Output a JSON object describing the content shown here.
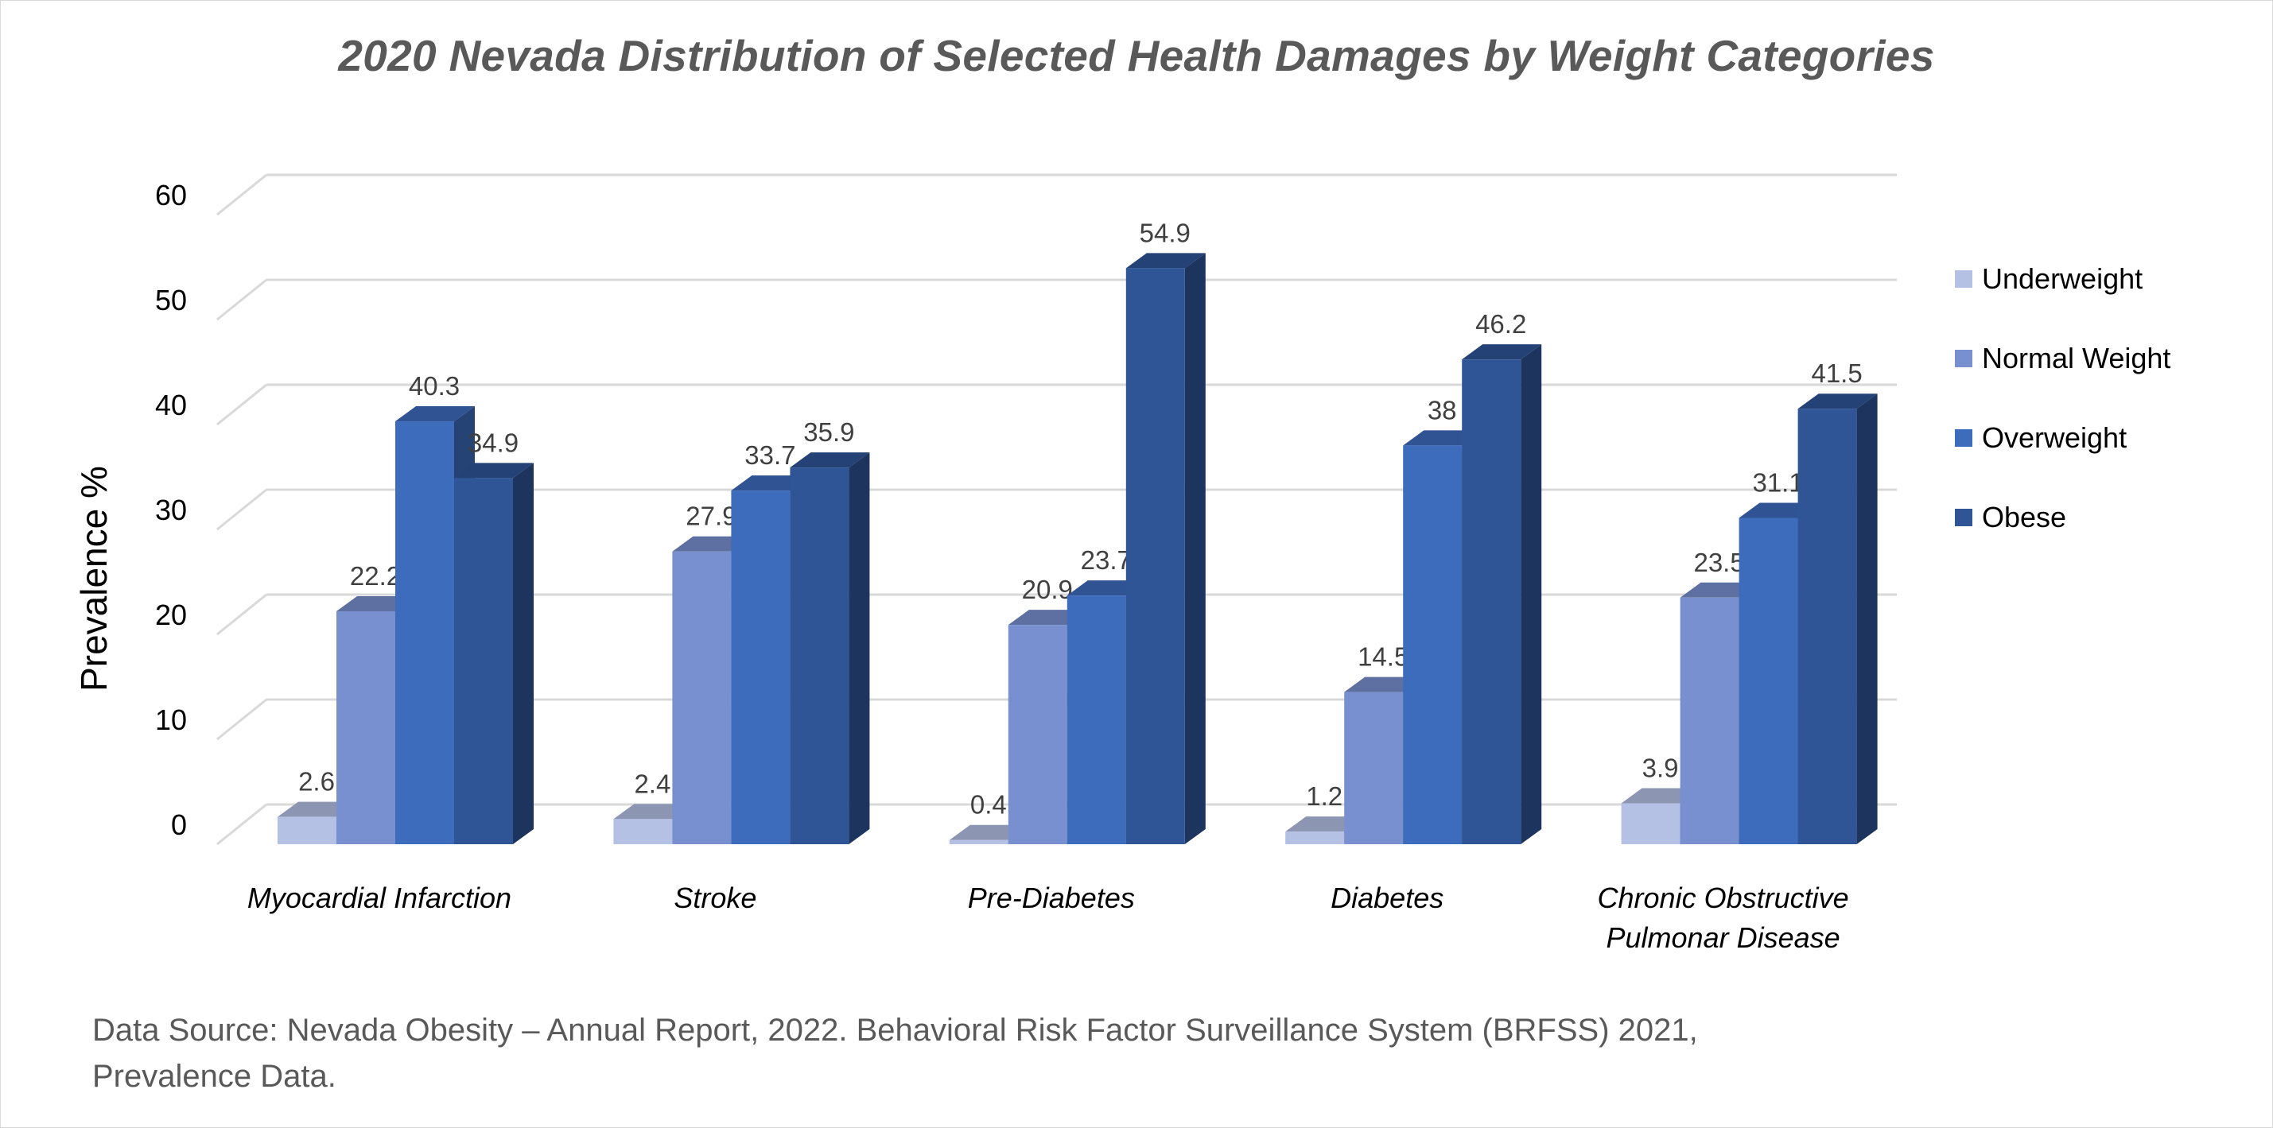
{
  "chart_data": {
    "type": "bar",
    "title": "2020 Nevada Distribution of  Selected Health Damages by Weight Categories",
    "ylabel": "Prevalence %",
    "xlabel": "",
    "ylim": [
      0,
      60
    ],
    "yticks": [
      "0",
      "10",
      "20",
      "30",
      "40",
      "50",
      "60"
    ],
    "grid": true,
    "legend_position": "right",
    "categories": [
      [
        "Myocardial Infarction"
      ],
      [
        "Stroke"
      ],
      [
        "Pre-Diabetes"
      ],
      [
        "Diabetes"
      ],
      [
        "Chronic Obstructive",
        "Pulmonar Disease"
      ]
    ],
    "series": [
      {
        "name": "Underweight",
        "color": "#b4c0e4",
        "values": [
          2.6,
          2.4,
          0.4,
          1.2,
          3.9
        ]
      },
      {
        "name": "Normal Weight",
        "color": "#7890cf",
        "values": [
          22.2,
          27.9,
          20.9,
          14.5,
          23.5
        ]
      },
      {
        "name": "Overweight",
        "color": "#3e6cbd",
        "values": [
          40.3,
          33.7,
          23.7,
          38,
          31.1
        ]
      },
      {
        "name": "Obese",
        "color": "#2f5597",
        "values": [
          34.9,
          35.9,
          54.9,
          46.2,
          41.5
        ]
      }
    ]
  },
  "source_note": {
    "line1": "Data Source: Nevada Obesity – Annual Report, 2022. Behavioral Risk Factor Surveillance System (BRFSS) 2021,",
    "line2": "Prevalence Data."
  }
}
